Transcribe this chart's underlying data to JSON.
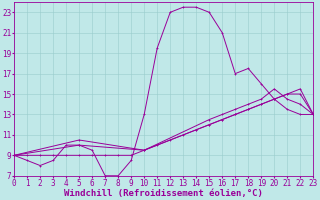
{
  "xlabel": "Windchill (Refroidissement éolien,°C)",
  "background_color": "#c0e8e8",
  "line_color": "#990099",
  "grid_color": "#99cccc",
  "xlim": [
    0,
    23
  ],
  "ylim": [
    7,
    24
  ],
  "xticks": [
    0,
    1,
    2,
    3,
    4,
    5,
    6,
    7,
    8,
    9,
    10,
    11,
    12,
    13,
    14,
    15,
    16,
    17,
    18,
    19,
    20,
    21,
    22,
    23
  ],
  "yticks": [
    7,
    9,
    11,
    13,
    15,
    17,
    19,
    21,
    23
  ],
  "line1_x": [
    0,
    1,
    2,
    3,
    4,
    5,
    6,
    7,
    8,
    9,
    10,
    11,
    12,
    13,
    14,
    15,
    16,
    17,
    18,
    19,
    20,
    21,
    22,
    23
  ],
  "line1_y": [
    9,
    8.5,
    8,
    8.5,
    10,
    10,
    9.5,
    7,
    7,
    8.5,
    13,
    19.5,
    23,
    23.5,
    23.5,
    23,
    21,
    17,
    17.5,
    16,
    14.5,
    13.5,
    13.0,
    13
  ],
  "line2_x": [
    0,
    5,
    10,
    15,
    16,
    17,
    18,
    19,
    20,
    21,
    22,
    23
  ],
  "line2_y": [
    9,
    10.5,
    9.5,
    12.5,
    13,
    13.5,
    14,
    14.5,
    15.5,
    14.5,
    14.0,
    13
  ],
  "line3_x": [
    0,
    5,
    10,
    14,
    15,
    16,
    17,
    18,
    19,
    20,
    21,
    22,
    23
  ],
  "line3_y": [
    9,
    10,
    9.5,
    11.5,
    12,
    12.5,
    13,
    13.5,
    14,
    14.5,
    15,
    15.5,
    13
  ],
  "line4_x": [
    0,
    1,
    2,
    3,
    4,
    5,
    6,
    7,
    8,
    9,
    10,
    11,
    12,
    13,
    14,
    15,
    16,
    17,
    18,
    19,
    20,
    21,
    22,
    23
  ],
  "line4_y": [
    9,
    9,
    9,
    9,
    9,
    9,
    9,
    9,
    9,
    9,
    9.5,
    10,
    10.5,
    11,
    11.5,
    12,
    12.5,
    13,
    13.5,
    14,
    14.5,
    15,
    15,
    13
  ],
  "tick_fontsize": 5.5,
  "xlabel_fontsize": 6.5,
  "marker_size": 2
}
